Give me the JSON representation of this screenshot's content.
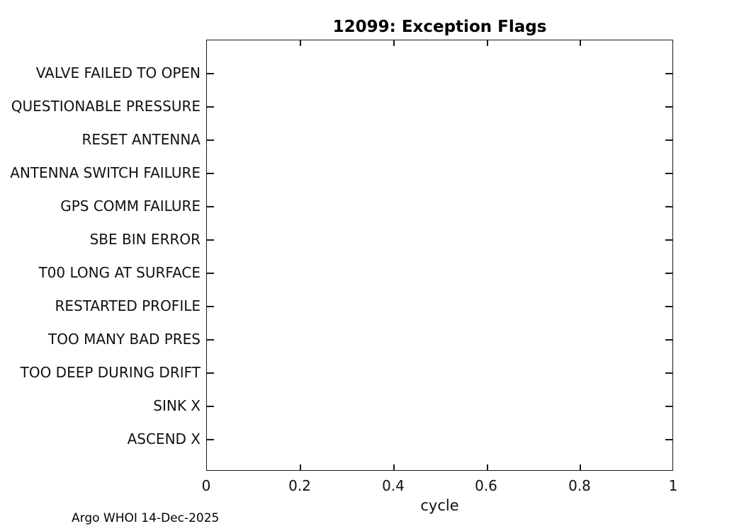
{
  "chart_data": {
    "type": "scatter",
    "title": "12099: Exception Flags",
    "xlabel": "cycle",
    "ylabel": "",
    "xlim": [
      0,
      1
    ],
    "xticks": [
      0,
      0.2,
      0.4,
      0.6,
      0.8,
      1
    ],
    "xtick_labels": [
      "0",
      "0.2",
      "0.4",
      "0.6",
      "0.8",
      "1"
    ],
    "y_categories": [
      "VALVE FAILED TO OPEN",
      "QUESTIONABLE PRESSURE",
      "RESET ANTENNA",
      "ANTENNA SWITCH FAILURE",
      "GPS COMM FAILURE",
      "SBE BIN ERROR",
      "T00 LONG AT SURFACE",
      "RESTARTED PROFILE",
      "TOO MANY BAD PRES",
      "TOO DEEP DURING DRIFT",
      "SINK X",
      "ASCEND X"
    ],
    "series": [],
    "grid": false,
    "legend": "none",
    "box": true,
    "tick_style": "inward-mirrored",
    "annotation": "Argo WHOI 14-Dec-2025"
  },
  "colors": {
    "axis": "#1a1a1a",
    "text": "#000000",
    "background": "#ffffff"
  }
}
